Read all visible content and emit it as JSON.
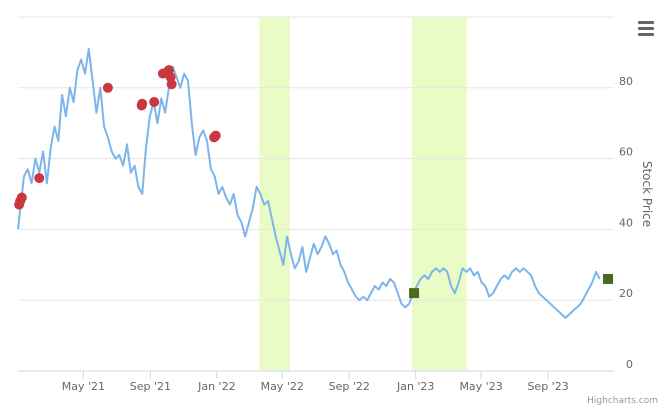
{
  "chart_data": {
    "type": "line",
    "title": "",
    "xlabel": "",
    "ylabel": "Stock Price",
    "xlim": [
      "2021-01-01",
      "2023-12-31"
    ],
    "ylim": [
      0,
      100
    ],
    "y_ticks": [
      0,
      20,
      40,
      60,
      80
    ],
    "y_tick_labels": [
      "0",
      "20",
      "40",
      "60",
      "80"
    ],
    "x_ticks": [
      "2021-05-01",
      "2021-09-01",
      "2022-01-01",
      "2022-05-01",
      "2022-09-01",
      "2023-01-01",
      "2023-05-01",
      "2023-09-01"
    ],
    "x_tick_labels": [
      "May '21",
      "Sep '21",
      "Jan '22",
      "May '22",
      "Sep '22",
      "Jan '23",
      "May '23",
      "Sep '23"
    ],
    "grid": true,
    "bands": [
      {
        "from": "2022-03-20",
        "to": "2022-05-15",
        "color": "#eafcc5"
      },
      {
        "from": "2022-12-25",
        "to": "2023-04-05",
        "color": "#eafcc5"
      }
    ],
    "series": [
      {
        "color": "#7cb5ec",
        "points": [
          [
            "2021-01-01",
            40.0
          ],
          [
            "2021-01-06",
            47.0
          ],
          [
            "2021-01-12",
            55.0
          ],
          [
            "2021-01-19",
            57.0
          ],
          [
            "2021-01-26",
            53.0
          ],
          [
            "2021-02-02",
            60.0
          ],
          [
            "2021-02-09",
            56.0
          ],
          [
            "2021-02-16",
            62.0
          ],
          [
            "2021-02-23",
            53.0
          ],
          [
            "2021-03-02",
            63.0
          ],
          [
            "2021-03-09",
            69.0
          ],
          [
            "2021-03-16",
            65.0
          ],
          [
            "2021-03-23",
            78.0
          ],
          [
            "2021-03-30",
            72.0
          ],
          [
            "2021-04-06",
            80.0
          ],
          [
            "2021-04-13",
            76.0
          ],
          [
            "2021-04-20",
            85.0
          ],
          [
            "2021-04-27",
            88.0
          ],
          [
            "2021-05-04",
            84.0
          ],
          [
            "2021-05-11",
            91.0
          ],
          [
            "2021-05-18",
            82.0
          ],
          [
            "2021-05-25",
            73.0
          ],
          [
            "2021-06-01",
            80.0
          ],
          [
            "2021-06-08",
            69.0
          ],
          [
            "2021-06-15",
            66.0
          ],
          [
            "2021-06-22",
            62.0
          ],
          [
            "2021-06-29",
            60.0
          ],
          [
            "2021-07-06",
            61.0
          ],
          [
            "2021-07-13",
            58.0
          ],
          [
            "2021-07-20",
            64.0
          ],
          [
            "2021-07-27",
            56.0
          ],
          [
            "2021-08-03",
            58.0
          ],
          [
            "2021-08-10",
            52.0
          ],
          [
            "2021-08-17",
            50.0
          ],
          [
            "2021-08-24",
            63.0
          ],
          [
            "2021-08-31",
            72.0
          ],
          [
            "2021-09-07",
            76.0
          ],
          [
            "2021-09-14",
            70.0
          ],
          [
            "2021-09-21",
            77.0
          ],
          [
            "2021-09-28",
            73.0
          ],
          [
            "2021-10-05",
            80.0
          ],
          [
            "2021-10-12",
            86.0
          ],
          [
            "2021-10-19",
            83.0
          ],
          [
            "2021-10-26",
            80.0
          ],
          [
            "2021-11-02",
            84.0
          ],
          [
            "2021-11-09",
            82.0
          ],
          [
            "2021-11-16",
            70.0
          ],
          [
            "2021-11-23",
            61.0
          ],
          [
            "2021-11-30",
            66.0
          ],
          [
            "2021-12-07",
            68.0
          ],
          [
            "2021-12-14",
            65.0
          ],
          [
            "2021-12-21",
            57.0
          ],
          [
            "2021-12-28",
            55.0
          ],
          [
            "2022-01-04",
            50.0
          ],
          [
            "2022-01-11",
            52.0
          ],
          [
            "2022-01-18",
            49.0
          ],
          [
            "2022-01-25",
            47.0
          ],
          [
            "2022-02-01",
            50.0
          ],
          [
            "2022-02-08",
            44.0
          ],
          [
            "2022-02-15",
            42.0
          ],
          [
            "2022-02-22",
            38.0
          ],
          [
            "2022-03-01",
            42.0
          ],
          [
            "2022-03-08",
            46.0
          ],
          [
            "2022-03-15",
            52.0
          ],
          [
            "2022-03-22",
            50.0
          ],
          [
            "2022-03-29",
            47.0
          ],
          [
            "2022-04-05",
            48.0
          ],
          [
            "2022-04-12",
            43.0
          ],
          [
            "2022-04-19",
            38.0
          ],
          [
            "2022-04-26",
            34.0
          ],
          [
            "2022-05-03",
            30.0
          ],
          [
            "2022-05-10",
            38.0
          ],
          [
            "2022-05-17",
            33.0
          ],
          [
            "2022-05-24",
            29.0
          ],
          [
            "2022-05-31",
            31.0
          ],
          [
            "2022-06-07",
            35.0
          ],
          [
            "2022-06-14",
            28.0
          ],
          [
            "2022-06-21",
            32.0
          ],
          [
            "2022-06-28",
            36.0
          ],
          [
            "2022-07-05",
            33.0
          ],
          [
            "2022-07-12",
            35.0
          ],
          [
            "2022-07-19",
            38.0
          ],
          [
            "2022-07-26",
            36.0
          ],
          [
            "2022-08-02",
            33.0
          ],
          [
            "2022-08-09",
            34.0
          ],
          [
            "2022-08-16",
            30.0
          ],
          [
            "2022-08-23",
            28.0
          ],
          [
            "2022-08-30",
            25.0
          ],
          [
            "2022-09-06",
            23.0
          ],
          [
            "2022-09-13",
            21.0
          ],
          [
            "2022-09-20",
            20.0
          ],
          [
            "2022-09-27",
            21.0
          ],
          [
            "2022-10-04",
            20.0
          ],
          [
            "2022-10-11",
            22.0
          ],
          [
            "2022-10-18",
            24.0
          ],
          [
            "2022-10-25",
            23.0
          ],
          [
            "2022-11-01",
            25.0
          ],
          [
            "2022-11-08",
            24.0
          ],
          [
            "2022-11-15",
            26.0
          ],
          [
            "2022-11-22",
            25.0
          ],
          [
            "2022-11-29",
            22.0
          ],
          [
            "2022-12-06",
            19.0
          ],
          [
            "2022-12-13",
            18.0
          ],
          [
            "2022-12-20",
            19.0
          ],
          [
            "2022-12-27",
            22.0
          ],
          [
            "2023-01-03",
            24.0
          ],
          [
            "2023-01-10",
            26.0
          ],
          [
            "2023-01-17",
            27.0
          ],
          [
            "2023-01-24",
            26.0
          ],
          [
            "2023-01-31",
            28.0
          ],
          [
            "2023-02-07",
            29.0
          ],
          [
            "2023-02-14",
            28.0
          ],
          [
            "2023-02-21",
            29.0
          ],
          [
            "2023-02-28",
            28.0
          ],
          [
            "2023-03-07",
            24.0
          ],
          [
            "2023-03-14",
            22.0
          ],
          [
            "2023-03-21",
            25.0
          ],
          [
            "2023-03-28",
            29.0
          ],
          [
            "2023-04-04",
            28.0
          ],
          [
            "2023-04-11",
            29.0
          ],
          [
            "2023-04-18",
            27.0
          ],
          [
            "2023-04-25",
            28.0
          ],
          [
            "2023-05-02",
            25.0
          ],
          [
            "2023-05-09",
            24.0
          ],
          [
            "2023-05-16",
            21.0
          ],
          [
            "2023-05-23",
            22.0
          ],
          [
            "2023-05-30",
            24.0
          ],
          [
            "2023-06-06",
            26.0
          ],
          [
            "2023-06-13",
            27.0
          ],
          [
            "2023-06-20",
            26.0
          ],
          [
            "2023-06-27",
            28.0
          ],
          [
            "2023-07-04",
            29.0
          ],
          [
            "2023-07-11",
            28.0
          ],
          [
            "2023-07-18",
            29.0
          ],
          [
            "2023-07-25",
            28.0
          ],
          [
            "2023-08-01",
            27.0
          ],
          [
            "2023-08-08",
            24.0
          ],
          [
            "2023-08-15",
            22.0
          ],
          [
            "2023-08-22",
            21.0
          ],
          [
            "2023-08-29",
            20.0
          ],
          [
            "2023-09-05",
            19.0
          ],
          [
            "2023-09-12",
            18.0
          ],
          [
            "2023-09-19",
            17.0
          ],
          [
            "2023-09-26",
            16.0
          ],
          [
            "2023-10-03",
            15.0
          ],
          [
            "2023-10-10",
            16.0
          ],
          [
            "2023-10-17",
            17.0
          ],
          [
            "2023-10-24",
            18.0
          ],
          [
            "2023-10-31",
            19.0
          ],
          [
            "2023-11-07",
            21.0
          ],
          [
            "2023-11-14",
            23.0
          ],
          [
            "2023-11-21",
            25.0
          ],
          [
            "2023-11-28",
            28.0
          ],
          [
            "2023-12-05",
            26.0
          ]
        ]
      }
    ],
    "markers": [
      {
        "x": "2021-01-03",
        "y": 47.0,
        "shape": "circle",
        "color": "#c9373f"
      },
      {
        "x": "2021-01-05",
        "y": 48.0,
        "shape": "circle",
        "color": "#c9373f"
      },
      {
        "x": "2021-01-08",
        "y": 49.0,
        "shape": "circle",
        "color": "#c9373f"
      },
      {
        "x": "2021-02-09",
        "y": 54.5,
        "shape": "circle",
        "color": "#c9373f"
      },
      {
        "x": "2021-06-15",
        "y": 80.0,
        "shape": "circle",
        "color": "#c9373f"
      },
      {
        "x": "2021-08-16",
        "y": 75.0,
        "shape": "circle",
        "color": "#c9373f"
      },
      {
        "x": "2021-08-17",
        "y": 75.5,
        "shape": "circle",
        "color": "#c9373f"
      },
      {
        "x": "2021-09-08",
        "y": 76.0,
        "shape": "circle",
        "color": "#c9373f"
      },
      {
        "x": "2021-09-24",
        "y": 84.0,
        "shape": "circle",
        "color": "#c9373f"
      },
      {
        "x": "2021-10-02",
        "y": 84.5,
        "shape": "circle",
        "color": "#c9373f"
      },
      {
        "x": "2021-10-05",
        "y": 85.0,
        "shape": "circle",
        "color": "#c9373f"
      },
      {
        "x": "2021-10-08",
        "y": 83.0,
        "shape": "circle",
        "color": "#c9373f"
      },
      {
        "x": "2021-10-10",
        "y": 81.0,
        "shape": "circle",
        "color": "#c9373f"
      },
      {
        "x": "2021-12-27",
        "y": 66.0,
        "shape": "circle",
        "color": "#c9373f"
      },
      {
        "x": "2021-12-30",
        "y": 66.5,
        "shape": "circle",
        "color": "#c9373f"
      },
      {
        "x": "2022-12-29",
        "y": 22.0,
        "shape": "square",
        "color": "#4a6b1e"
      },
      {
        "x": "2023-12-20",
        "y": 26.0,
        "shape": "square",
        "color": "#4a6b1e"
      }
    ],
    "credits": "Highcharts.com"
  }
}
